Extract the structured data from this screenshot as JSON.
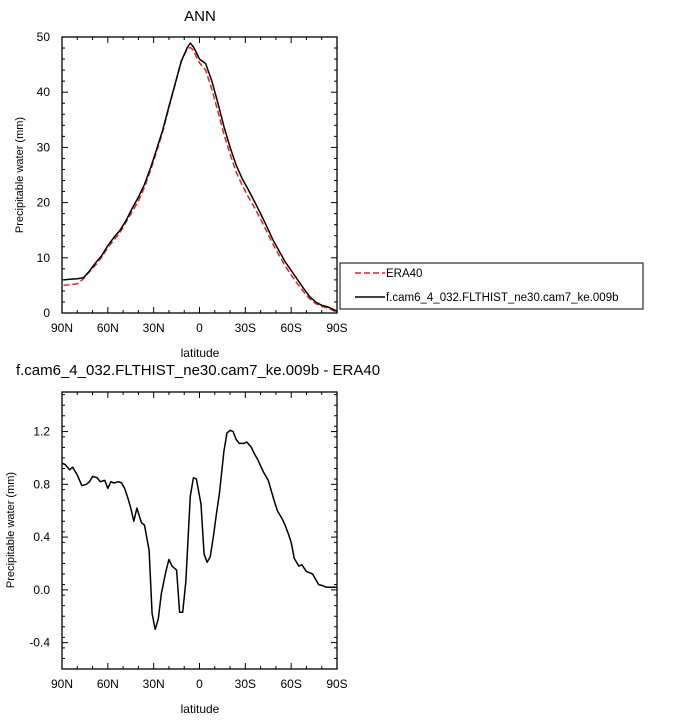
{
  "chart_data": [
    {
      "type": "line",
      "title": "ANN",
      "xlabel": "latitude",
      "ylabel": "Precipitable water (mm)",
      "xlim": [
        90,
        -90
      ],
      "ylim": [
        0,
        50
      ],
      "x_ticks": [
        90,
        60,
        30,
        0,
        -30,
        -60,
        -90
      ],
      "x_tick_labels": [
        "90N",
        "60N",
        "30N",
        "0",
        "30S",
        "60S",
        "90S"
      ],
      "y_ticks": [
        0,
        10,
        20,
        30,
        40,
        50
      ],
      "y_tick_labels": [
        "0",
        "10",
        "20",
        "30",
        "40",
        "50"
      ],
      "grid": false,
      "legend_position": "right",
      "series": [
        {
          "name": "ERA40",
          "color": "#e8221e",
          "dash": "dashed",
          "x": [
            89,
            85,
            80,
            76,
            72,
            68,
            64,
            60,
            56,
            52,
            48,
            44,
            40,
            36,
            32,
            28,
            24,
            20,
            16,
            12,
            8,
            6,
            4,
            2,
            0,
            -4,
            -8,
            -12,
            -16,
            -20,
            -24,
            -28,
            -32,
            -36,
            -40,
            -44,
            -48,
            -52,
            -56,
            -60,
            -64,
            -68,
            -72,
            -76,
            -80,
            -84,
            -88,
            -90
          ],
          "y": [
            5.0,
            5.1,
            5.3,
            6.2,
            7.5,
            8.7,
            10.1,
            11.9,
            13.2,
            14.6,
            16.5,
            18.4,
            20.3,
            22.8,
            25.9,
            29.3,
            32.9,
            37.2,
            41.4,
            45.5,
            47.9,
            48.1,
            47.6,
            46.4,
            45.3,
            44.0,
            40.6,
            36.6,
            32.4,
            28.8,
            25.5,
            23.1,
            21.0,
            19.1,
            17.0,
            14.8,
            12.5,
            10.5,
            8.5,
            6.9,
            5.3,
            3.9,
            2.6,
            1.7,
            1.2,
            0.9,
            0.4,
            0.2
          ]
        },
        {
          "name": "f.cam6_4_032.FLTHIST_ne30.cam7_ke.009b",
          "color": "#000000",
          "dash": "solid",
          "x": [
            89,
            85,
            80,
            76,
            72,
            68,
            64,
            60,
            56,
            52,
            48,
            44,
            40,
            36,
            32,
            28,
            24,
            20,
            16,
            12,
            8,
            6,
            4,
            2,
            0,
            -4,
            -8,
            -12,
            -16,
            -20,
            -24,
            -28,
            -32,
            -36,
            -40,
            -44,
            -48,
            -52,
            -56,
            -60,
            -64,
            -68,
            -72,
            -76,
            -80,
            -84,
            -88,
            -90
          ],
          "y": [
            6.0,
            6.1,
            6.2,
            6.4,
            7.6,
            9.1,
            10.4,
            12.2,
            13.7,
            15.0,
            16.8,
            19.0,
            21.0,
            23.3,
            26.3,
            29.7,
            33.2,
            37.4,
            41.5,
            45.6,
            48.1,
            48.9,
            48.2,
            47.2,
            46.0,
            45.2,
            42.1,
            38.1,
            33.8,
            30.0,
            26.8,
            24.3,
            22.3,
            20.2,
            18.0,
            15.7,
            13.3,
            11.3,
            9.3,
            7.7,
            6.1,
            4.5,
            3.0,
            2.0,
            1.4,
            1.1,
            0.6,
            0.3
          ]
        }
      ]
    },
    {
      "type": "line",
      "title": "f.cam6_4_032.FLTHIST_ne30.cam7_ke.009b - ERA40",
      "xlabel": "latitude",
      "ylabel": "Precipitable water (mm)",
      "xlim": [
        90,
        -90
      ],
      "ylim": [
        -0.6,
        1.5
      ],
      "x_ticks": [
        90,
        60,
        30,
        0,
        -30,
        -60,
        -90
      ],
      "x_tick_labels": [
        "90N",
        "60N",
        "30N",
        "0",
        "30S",
        "60S",
        "90S"
      ],
      "y_ticks": [
        -0.4,
        0.0,
        0.4,
        0.8,
        1.2
      ],
      "y_tick_labels": [
        "-0.4",
        "0.0",
        "0.4",
        "0.8",
        "1.2"
      ],
      "grid": false,
      "series": [
        {
          "color": "#000000",
          "dash": "solid",
          "x": [
            90,
            88,
            85,
            83,
            80,
            77,
            74,
            72,
            70,
            67,
            65,
            62,
            60,
            58,
            56,
            53,
            51,
            49,
            47,
            45,
            43,
            41,
            38,
            36,
            33,
            31,
            29,
            27,
            25,
            22,
            20,
            18,
            15,
            13,
            11,
            9,
            6,
            4,
            2,
            -1,
            -3,
            -5,
            -7,
            -9,
            -11,
            -13,
            -16,
            -18,
            -20,
            -22,
            -24,
            -26,
            -29,
            -31,
            -34,
            -36,
            -38,
            -40,
            -42,
            -45,
            -47,
            -49,
            -51,
            -54,
            -56,
            -58,
            -60,
            -62,
            -65,
            -67,
            -70,
            -72,
            -74,
            -76,
            -78,
            -81,
            -83,
            -85,
            -87,
            -90
          ],
          "y": [
            0.96,
            0.95,
            0.91,
            0.93,
            0.87,
            0.79,
            0.8,
            0.82,
            0.86,
            0.85,
            0.82,
            0.83,
            0.77,
            0.82,
            0.81,
            0.82,
            0.81,
            0.77,
            0.7,
            0.62,
            0.52,
            0.62,
            0.51,
            0.49,
            0.3,
            -0.18,
            -0.3,
            -0.22,
            -0.03,
            0.14,
            0.23,
            0.18,
            0.15,
            -0.17,
            -0.17,
            0.06,
            0.71,
            0.85,
            0.84,
            0.65,
            0.27,
            0.21,
            0.25,
            0.4,
            0.57,
            0.73,
            1.05,
            1.19,
            1.21,
            1.2,
            1.14,
            1.11,
            1.11,
            1.12,
            1.08,
            1.03,
            0.99,
            0.94,
            0.89,
            0.83,
            0.75,
            0.67,
            0.6,
            0.54,
            0.49,
            0.43,
            0.36,
            0.24,
            0.18,
            0.19,
            0.14,
            0.13,
            0.12,
            0.08,
            0.04,
            0.03,
            0.02,
            0.02,
            0.02,
            0.02
          ]
        }
      ]
    }
  ]
}
